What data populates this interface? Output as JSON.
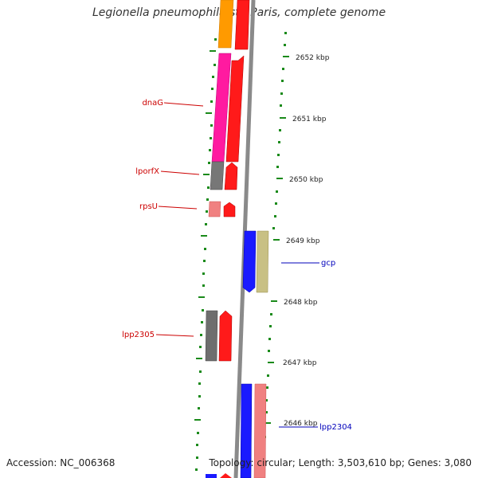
{
  "title": "Legionella pneumophila str. Paris, complete genome",
  "footer": {
    "accession": "Accession: NC_006368",
    "topology": "Topology: circular; Length: 3,503,610 bp; Genes: 3,080"
  },
  "colors": {
    "backbone": "#7a7a7a",
    "tick": "#1a7a1a",
    "forward_label": "#cc0000",
    "reverse_label": "#0000bb"
  },
  "kbp_labels": [
    {
      "text": "2652 kbp"
    },
    {
      "text": "2651 kbp"
    },
    {
      "text": "2650 kbp"
    },
    {
      "text": "2649 kbp"
    },
    {
      "text": "2648 kbp"
    },
    {
      "text": "2647 kbp"
    },
    {
      "text": "2646 kbp"
    }
  ],
  "gene_labels": [
    {
      "text": "dnaG",
      "strand": "forward"
    },
    {
      "text": "lporfX",
      "strand": "forward"
    },
    {
      "text": "rpsU",
      "strand": "forward"
    },
    {
      "text": "lpp2305",
      "strand": "forward"
    },
    {
      "text": "gcp",
      "strand": "reverse"
    },
    {
      "text": "lpp2304",
      "strand": "reverse"
    }
  ]
}
